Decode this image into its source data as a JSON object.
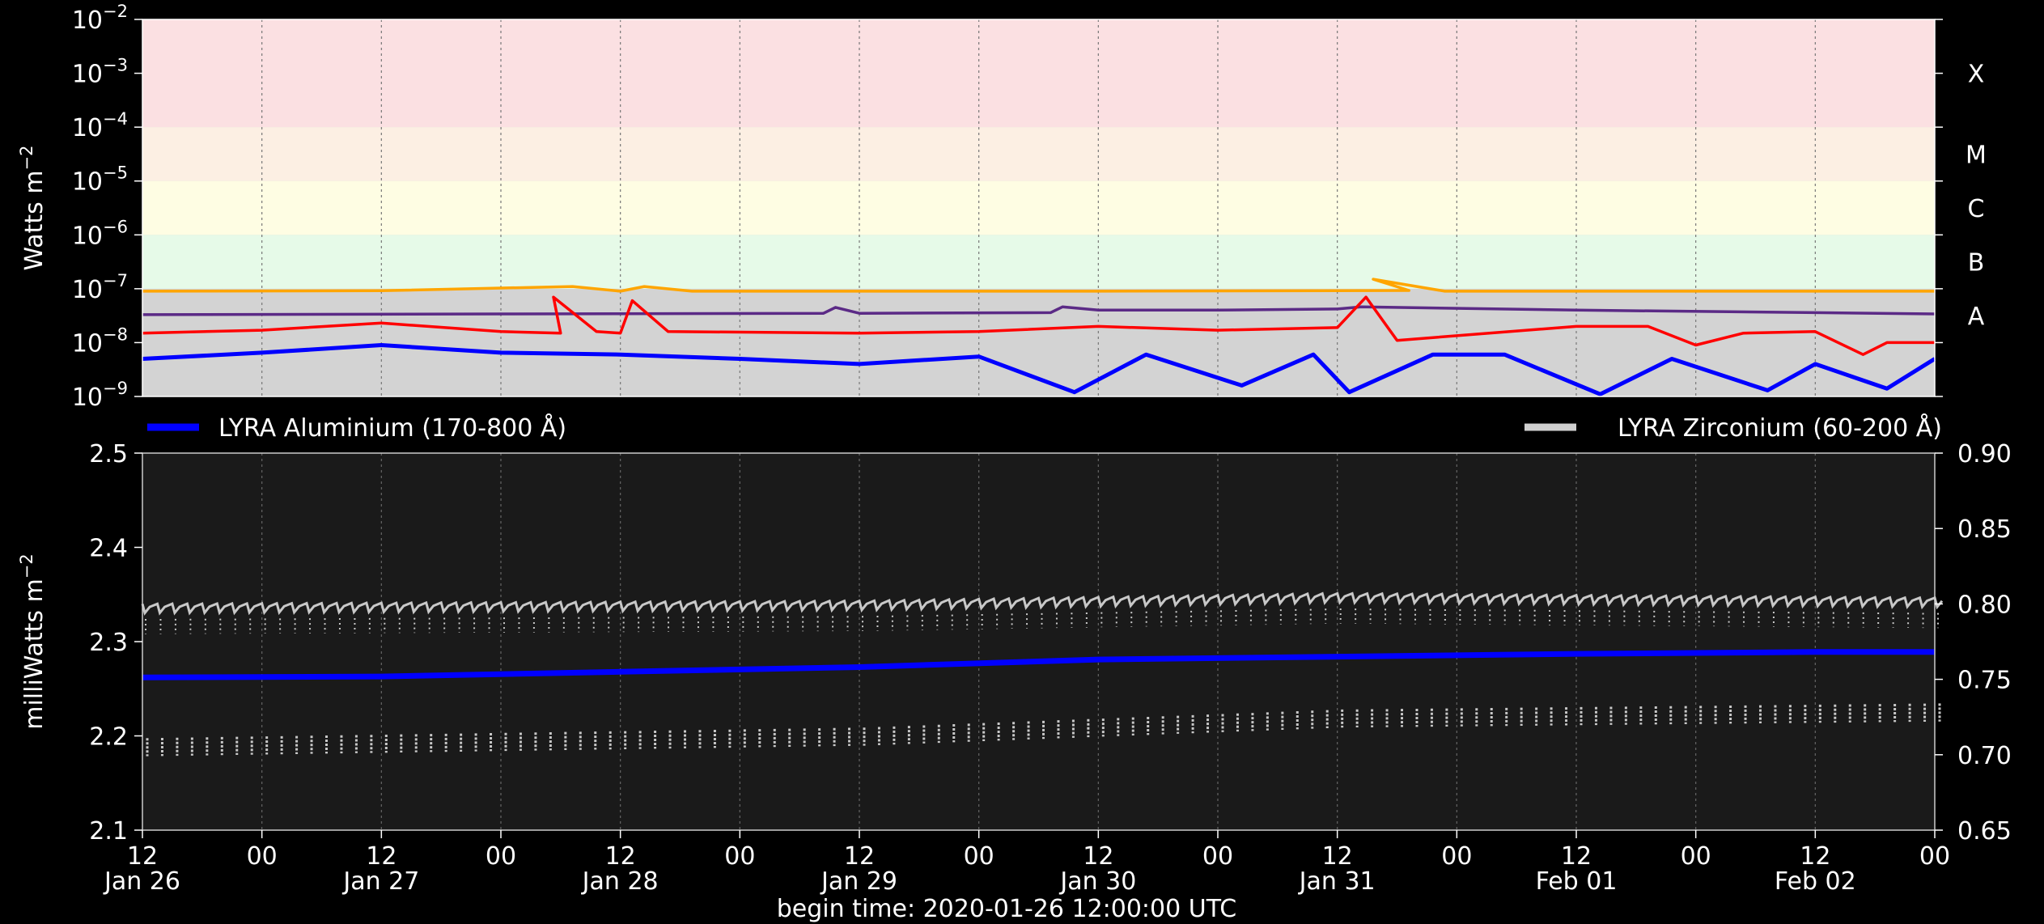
{
  "colors": {
    "background": "#000000",
    "bottom_panel_bg": "#1a1a1a",
    "top_panel_bg": "#d3d3d3",
    "band_X": "#fbe0e2",
    "band_M": "#fcefe3",
    "band_C": "#fefde3",
    "band_B": "#e6fae8",
    "goes_long": "#ffa500",
    "goes_short": "#5b2a86",
    "lyra_zr_top": "#ff0000",
    "lyra_al_top": "#0000ff",
    "lyra_al": "#0000ff",
    "lyra_zr": "#c8c8c8"
  },
  "footer": {
    "begin_time": "begin time: 2020-01-26 12:00:00 UTC"
  },
  "chart_data": [
    {
      "type": "line",
      "panel": "top",
      "scale": "log",
      "ylabel": "Watts m^-2",
      "ylim": [
        1e-09,
        0.01
      ],
      "y_ticks": [
        {
          "value": 0.01,
          "exp": "−2"
        },
        {
          "value": 0.001,
          "exp": "−3"
        },
        {
          "value": 0.0001,
          "exp": "−4"
        },
        {
          "value": 1e-05,
          "exp": "−5"
        },
        {
          "value": 1e-06,
          "exp": "−6"
        },
        {
          "value": 1e-07,
          "exp": "−7"
        },
        {
          "value": 1e-08,
          "exp": "−8"
        },
        {
          "value": 1e-09,
          "exp": "−9"
        }
      ],
      "flare_classes": [
        {
          "label": "X",
          "lo": 0.0001,
          "hi": 0.01
        },
        {
          "label": "M",
          "lo": 1e-05,
          "hi": 0.0001
        },
        {
          "label": "C",
          "lo": 1e-06,
          "hi": 1e-05
        },
        {
          "label": "B",
          "lo": 1e-07,
          "hi": 1e-06
        },
        {
          "label": "A",
          "lo": 1e-08,
          "hi": 1e-07
        }
      ],
      "series": [
        {
          "key": "goes_long",
          "points": [
            [
              0,
              9e-08
            ],
            [
              1,
              9.2e-08
            ],
            [
              1.8,
              1.1e-07
            ],
            [
              2,
              9e-08
            ],
            [
              2.1,
              1.1e-07
            ],
            [
              2.3,
              9e-08
            ],
            [
              4,
              9e-08
            ],
            [
              5.3,
              9.3e-08
            ],
            [
              5.15,
              1.5e-07
            ],
            [
              5.45,
              9e-08
            ],
            [
              7.5,
              9e-08
            ]
          ]
        },
        {
          "key": "goes_short",
          "points": [
            [
              0,
              3.3e-08
            ],
            [
              1.5,
              3.4e-08
            ],
            [
              2.85,
              3.5e-08
            ],
            [
              2.9,
              4.5e-08
            ],
            [
              3,
              3.5e-08
            ],
            [
              3.8,
              3.6e-08
            ],
            [
              3.85,
              4.6e-08
            ],
            [
              4,
              4e-08
            ],
            [
              4.5,
              4e-08
            ],
            [
              5,
              4.2e-08
            ],
            [
              5.1,
              4.6e-08
            ],
            [
              6,
              4e-08
            ],
            [
              7,
              3.6e-08
            ],
            [
              7.5,
              3.4e-08
            ]
          ]
        },
        {
          "key": "lyra_zr_top",
          "points": [
            [
              0,
              1.5e-08
            ],
            [
              0.5,
              1.7e-08
            ],
            [
              1,
              2.3e-08
            ],
            [
              1.5,
              1.6e-08
            ],
            [
              1.75,
              1.5e-08
            ],
            [
              1.72,
              7e-08
            ],
            [
              1.9,
              1.6e-08
            ],
            [
              2,
              1.5e-08
            ],
            [
              2.05,
              6e-08
            ],
            [
              2.2,
              1.6e-08
            ],
            [
              3,
              1.5e-08
            ],
            [
              3.5,
              1.6e-08
            ],
            [
              4,
              2e-08
            ],
            [
              4.5,
              1.7e-08
            ],
            [
              5,
              1.9e-08
            ],
            [
              5.12,
              7e-08
            ],
            [
              5.25,
              1.1e-08
            ],
            [
              6,
              2e-08
            ],
            [
              6.3,
              2e-08
            ],
            [
              6.5,
              9e-09
            ],
            [
              6.7,
              1.5e-08
            ],
            [
              7,
              1.6e-08
            ],
            [
              7.2,
              6e-09
            ],
            [
              7.3,
              1e-08
            ],
            [
              7.5,
              1e-08
            ]
          ]
        },
        {
          "key": "lyra_al_top",
          "points": [
            [
              0,
              5e-09
            ],
            [
              0.5,
              6.5e-09
            ],
            [
              1,
              9e-09
            ],
            [
              1.5,
              6.5e-09
            ],
            [
              2,
              6e-09
            ],
            [
              2.5,
              5e-09
            ],
            [
              3,
              4e-09
            ],
            [
              3.5,
              5.5e-09
            ],
            [
              3.9,
              1.2e-09
            ],
            [
              4.2,
              6e-09
            ],
            [
              4.6,
              1.6e-09
            ],
            [
              4.9,
              6e-09
            ],
            [
              5.05,
              1.2e-09
            ],
            [
              5.4,
              6e-09
            ],
            [
              5.7,
              6e-09
            ],
            [
              6.1,
              1.1e-09
            ],
            [
              6.4,
              5e-09
            ],
            [
              6.8,
              1.3e-09
            ],
            [
              7,
              4e-09
            ],
            [
              7.3,
              1.4e-09
            ],
            [
              7.5,
              5e-09
            ]
          ]
        }
      ]
    },
    {
      "type": "scatter",
      "panel": "bottom",
      "ylabel": "milliWatts m^-2",
      "ylim": [
        2.1,
        2.5
      ],
      "y_ticks": [
        "2.1",
        "2.2",
        "2.3",
        "2.4",
        "2.5"
      ],
      "y2lim": [
        0.65,
        0.9
      ],
      "y2_ticks": [
        "0.65",
        "0.70",
        "0.75",
        "0.80",
        "0.85",
        "0.90"
      ],
      "x_ticks": [
        {
          "hours": 0,
          "top": "12",
          "bottom": "Jan 26"
        },
        {
          "hours": 12,
          "top": "00",
          "bottom": ""
        },
        {
          "hours": 24,
          "top": "12",
          "bottom": "Jan 27"
        },
        {
          "hours": 36,
          "top": "00",
          "bottom": ""
        },
        {
          "hours": 48,
          "top": "12",
          "bottom": "Jan 28"
        },
        {
          "hours": 60,
          "top": "00",
          "bottom": ""
        },
        {
          "hours": 72,
          "top": "12",
          "bottom": "Jan 29"
        },
        {
          "hours": 84,
          "top": "00",
          "bottom": ""
        },
        {
          "hours": 96,
          "top": "12",
          "bottom": "Jan 30"
        },
        {
          "hours": 108,
          "top": "00",
          "bottom": ""
        },
        {
          "hours": 120,
          "top": "12",
          "bottom": "Jan 31"
        },
        {
          "hours": 132,
          "top": "00",
          "bottom": ""
        },
        {
          "hours": 144,
          "top": "12",
          "bottom": "Feb 01"
        },
        {
          "hours": 156,
          "top": "00",
          "bottom": ""
        },
        {
          "hours": 168,
          "top": "12",
          "bottom": "Feb 02"
        },
        {
          "hours": 180,
          "top": "00",
          "bottom": ""
        }
      ],
      "legend": [
        {
          "name": "LYRA Aluminium (170-800 Å)",
          "color": "#0000ff",
          "placement": "top-left"
        },
        {
          "name": "LYRA Zirconium (60-200 Å)",
          "color": "#d0d0d0",
          "placement": "top-right"
        }
      ],
      "series": [
        {
          "name": "LYRA Aluminium (170-800 Å)",
          "axis": "left",
          "points": [
            [
              0,
              2.262
            ],
            [
              1,
              2.263
            ],
            [
              2,
              2.268
            ],
            [
              3,
              2.273
            ],
            [
              4,
              2.281
            ],
            [
              5,
              2.284
            ],
            [
              6,
              2.287
            ],
            [
              7,
              2.289
            ],
            [
              7.5,
              2.289
            ]
          ]
        },
        {
          "name": "LYRA Zirconium (60-200 Å)",
          "axis": "right",
          "upper": [
            [
              0,
              0.8
            ],
            [
              3,
              0.802
            ],
            [
              5,
              0.807
            ],
            [
              7.5,
              0.804
            ]
          ],
          "lower": [
            [
              0,
              0.705
            ],
            [
              3,
              0.712
            ],
            [
              5,
              0.724
            ],
            [
              7.5,
              0.728
            ]
          ]
        }
      ]
    }
  ]
}
